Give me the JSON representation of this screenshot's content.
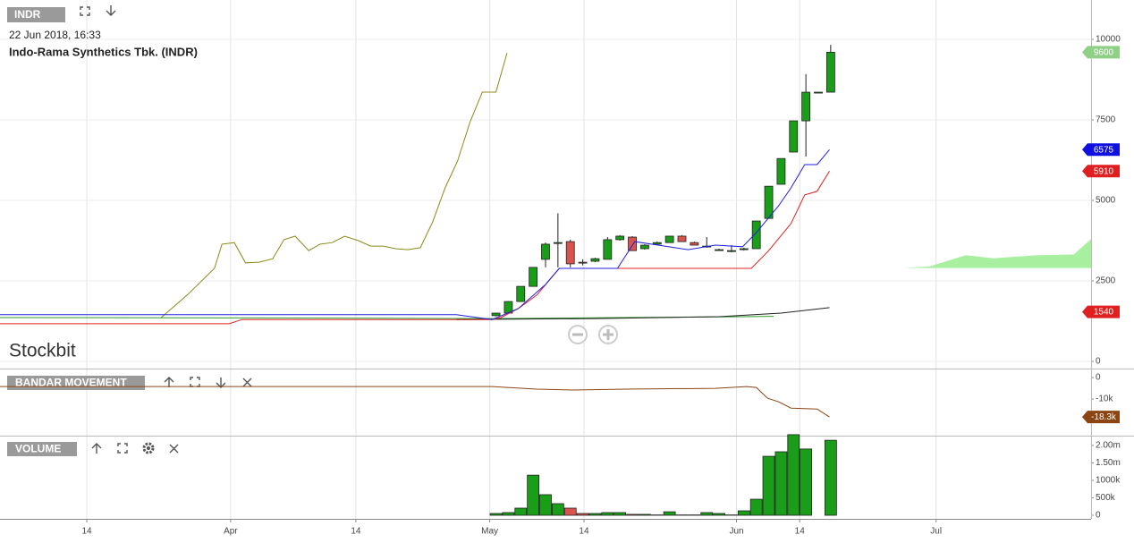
{
  "symbol": "INDR",
  "date": "22 Jun 2018, 16:33",
  "brand": "Stockbit",
  "chart_data": [
    {
      "type": "candlestick",
      "title": "Indo-Rama Synthetics Tbk. (INDR)",
      "xlim": [
        -40,
        48
      ],
      "ylim": [
        -222,
        11222
      ],
      "yticks": [
        0,
        2500,
        5000,
        7500,
        10000
      ],
      "grid": true,
      "up_color": "#1a9e1a",
      "down_color": "#d9534f",
      "candles": {
        "x": [
          0,
          1,
          2,
          3,
          4,
          5,
          6,
          7,
          8,
          9,
          10,
          11,
          12,
          13,
          14,
          15,
          16,
          17,
          18,
          19,
          20,
          21,
          22,
          23,
          24,
          25,
          26,
          27
        ],
        "open": [
          1420,
          1500,
          1860,
          2330,
          3170,
          3690,
          3720,
          3080,
          3110,
          3170,
          3780,
          3860,
          3500,
          3640,
          3690,
          3890,
          3690,
          3560,
          3470,
          3440,
          3470,
          3500,
          4440,
          5500,
          6500,
          7470,
          8360,
          8360
        ],
        "high": [
          1500,
          1870,
          2330,
          2920,
          3690,
          4600,
          3780,
          3170,
          3220,
          3860,
          3920,
          3890,
          3640,
          3720,
          3890,
          3920,
          3720,
          3860,
          3500,
          3610,
          3530,
          4360,
          5440,
          6300,
          7470,
          8920,
          8360,
          9830
        ],
        "low": [
          1400,
          1500,
          1860,
          2330,
          2920,
          2920,
          2920,
          2980,
          3080,
          3170,
          3750,
          3440,
          3470,
          3610,
          3690,
          3720,
          3610,
          3530,
          3440,
          3390,
          3440,
          3500,
          4440,
          5500,
          6500,
          6360,
          8360,
          8360
        ],
        "close": [
          1500,
          1860,
          2330,
          2920,
          3640,
          3690,
          3030,
          3060,
          3190,
          3780,
          3890,
          3440,
          3610,
          3690,
          3890,
          3720,
          3610,
          3580,
          3470,
          3440,
          3500,
          4360,
          5440,
          6300,
          7470,
          8360,
          8360,
          9600
        ]
      },
      "lines": [
        {
          "color": "#8a8a1a",
          "x": [
            -27,
            -24.9,
            -22.7,
            -22.1,
            -21.1,
            -20.2,
            -19.1,
            -18,
            -17.1,
            -16.2,
            -15.1,
            -14.2,
            -13.2,
            -12.2,
            -11.1,
            -10.1,
            -9.1,
            -8.1,
            -7.1,
            -6.1,
            -5.1,
            -4.1,
            -3.1,
            -2.1,
            -1.1,
            0,
            0.9
          ],
          "values": [
            1360,
            2060,
            2890,
            3640,
            3690,
            3060,
            3080,
            3190,
            3780,
            3890,
            3440,
            3640,
            3690,
            3890,
            3750,
            3580,
            3580,
            3500,
            3470,
            3530,
            4330,
            5390,
            6220,
            7420,
            8360,
            8360,
            9580
          ]
        },
        {
          "color": "#2b9a2b",
          "x": [
            -40,
            -20,
            0,
            10,
            20,
            22.4
          ],
          "values": [
            1360,
            1350,
            1330,
            1360,
            1390,
            1400
          ]
        },
        {
          "color": "#222222",
          "x": [
            -3.2,
            8,
            18,
            23,
            26.9
          ],
          "values": [
            1300,
            1330,
            1390,
            1500,
            1670
          ]
        },
        {
          "color": "#e02020",
          "x": [
            -40,
            -21.5,
            -20.5,
            -0.3,
            0.4,
            1.8,
            3.3,
            5.1,
            20.6,
            22,
            23.8,
            24.9,
            25.9,
            26.9
          ],
          "values": [
            1170,
            1170,
            1300,
            1300,
            1360,
            1640,
            2060,
            2890,
            2890,
            3440,
            4280,
            5170,
            5280,
            5910
          ]
        },
        {
          "color": "#2020e0",
          "x": [
            -40,
            -3.2,
            -0.3,
            1.8,
            4,
            5.1,
            9.8,
            11.2,
            15.5,
            17.7,
            19.9,
            21,
            22.8,
            23.8,
            24.9,
            25.9,
            26.9
          ],
          "values": [
            1450,
            1450,
            1300,
            1640,
            2390,
            2890,
            2890,
            3720,
            3470,
            3610,
            3560,
            4000,
            4830,
            5390,
            6110,
            6110,
            6575
          ]
        }
      ],
      "cloud": {
        "color": "#a8f0a0",
        "x": [
          32.9,
          35,
          37.9,
          40.1,
          43.7,
          46.6,
          48
        ],
        "upper": [
          2900,
          2950,
          3300,
          3200,
          3300,
          3320,
          3800
        ],
        "lower": [
          2900,
          2900,
          2900,
          2900,
          2900,
          2900,
          2900
        ]
      },
      "price_labels": [
        {
          "value": 9600,
          "color": "#8fcf86"
        },
        {
          "value": 6575,
          "color": "#1010e0"
        },
        {
          "value": 5910,
          "color": "#e02020"
        },
        {
          "value": 1540,
          "color": "#e02020"
        }
      ]
    },
    {
      "type": "line",
      "title": "BANDAR MOVEMENT",
      "color": "#8b4513",
      "xlim": [
        -40,
        48
      ],
      "ylim": [
        -27000,
        3750
      ],
      "yticks": [
        0,
        {
          "value": -10000,
          "label": "-10k"
        }
      ],
      "x": [
        -40,
        -0.3,
        3.3,
        6.2,
        10.5,
        17.7,
        20.2,
        21,
        21.9,
        22.8,
        23.8,
        25.9,
        26.9
      ],
      "values": [
        -4200,
        -4200,
        -5400,
        -5800,
        -5400,
        -5000,
        -4200,
        -4600,
        -9600,
        -11300,
        -14200,
        -14600,
        -18300
      ],
      "last_label": {
        "value": -18300,
        "label": "-18.3k"
      }
    },
    {
      "type": "bar",
      "title": "VOLUME",
      "xlim": [
        -40,
        48
      ],
      "ylim": [
        0,
        2256000
      ],
      "yticks": [
        0,
        {
          "value": 500000,
          "label": "500k"
        },
        {
          "value": 1000000,
          "label": "1000k"
        },
        {
          "value": 1500000,
          "label": "1.50m"
        },
        {
          "value": 2000000,
          "label": "2.00m"
        }
      ],
      "xticks": [
        {
          "value": -33,
          "label": "14"
        },
        {
          "value": -21.4,
          "label": "Apr"
        },
        {
          "value": -11.3,
          "label": "14"
        },
        {
          "value": -0.5,
          "label": "May"
        },
        {
          "value": 7.1,
          "label": "14"
        },
        {
          "value": 19.4,
          "label": "Jun"
        },
        {
          "value": 24.5,
          "label": "14"
        },
        {
          "value": 35.5,
          "label": "Jul"
        }
      ],
      "x": [
        0,
        1,
        2,
        3,
        4,
        5,
        6,
        7,
        8,
        9,
        10,
        11,
        12,
        13,
        14,
        15,
        16,
        17,
        18,
        19,
        20,
        21,
        22,
        23,
        24,
        25,
        26,
        27
      ],
      "values": [
        51000,
        77000,
        205000,
        1150000,
        590000,
        333000,
        205000,
        51000,
        51000,
        77000,
        77000,
        26000,
        26000,
        10000,
        100000,
        10000,
        10000,
        77000,
        51000,
        10000,
        128000,
        460000,
        1690000,
        1820000,
        2310000,
        1900000,
        0,
        2150000
      ]
    }
  ]
}
